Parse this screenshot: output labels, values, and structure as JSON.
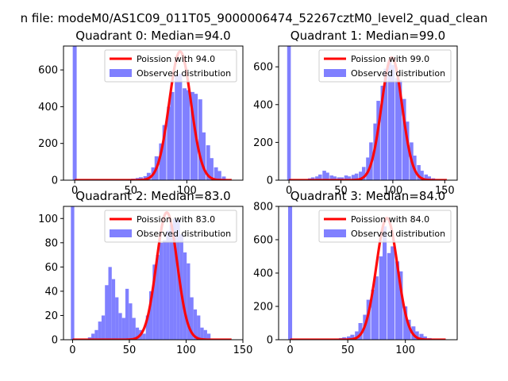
{
  "figure": {
    "suptitle": "n file: modeM0/AS1C09_011T05_9000006474_52267cztM0_level2_quad_clean"
  },
  "colors": {
    "observed": "#8080ff",
    "poisson": "#ff0000",
    "axis": "#000000",
    "background": "#ffffff"
  },
  "chart_data": [
    {
      "type": "bar",
      "title": "Quadrant 0: Median=94.0",
      "xlim": [
        -10,
        150
      ],
      "ylim": [
        0,
        730
      ],
      "xticks": [
        0,
        50,
        100
      ],
      "yticks": [
        0,
        200,
        400,
        600
      ],
      "legend": {
        "position": "upper-right",
        "entries": [
          "Poission with 94.0",
          "Observed distribution"
        ]
      },
      "poisson_mean": 94.0,
      "poisson_peak": 700,
      "hist": {
        "bin_width": 3.5,
        "x_centers": [
          0,
          49,
          52,
          56,
          59,
          63,
          66,
          70,
          73,
          77,
          80,
          84,
          87,
          91,
          94,
          98,
          101,
          105,
          108,
          112,
          115,
          119,
          122,
          126,
          129,
          133
        ],
        "values": [
          730,
          5,
          8,
          12,
          16,
          22,
          40,
          70,
          130,
          200,
          300,
          400,
          480,
          570,
          580,
          500,
          490,
          480,
          470,
          440,
          260,
          190,
          120,
          70,
          50,
          20
        ]
      }
    },
    {
      "type": "bar",
      "title": "Quadrant 1: Median=99.0",
      "xlim": [
        -10,
        162
      ],
      "ylim": [
        0,
        710
      ],
      "xticks": [
        0,
        50,
        100,
        150
      ],
      "yticks": [
        0,
        200,
        400,
        600
      ],
      "legend": {
        "position": "upper-right",
        "entries": [
          "Poission with 99.0",
          "Observed distribution"
        ]
      },
      "poisson_mean": 99.0,
      "poisson_peak": 650,
      "hist": {
        "bin_width": 3.5,
        "x_centers": [
          0,
          20,
          23,
          27,
          30,
          34,
          37,
          41,
          44,
          48,
          51,
          55,
          58,
          62,
          65,
          69,
          72,
          76,
          79,
          83,
          86,
          90,
          93,
          97,
          100,
          104,
          107,
          111,
          114,
          118,
          121,
          125,
          128,
          132,
          135,
          139
        ],
        "values": [
          710,
          10,
          15,
          20,
          30,
          50,
          40,
          25,
          20,
          15,
          15,
          25,
          20,
          28,
          35,
          45,
          70,
          120,
          200,
          300,
          420,
          500,
          590,
          640,
          610,
          540,
          530,
          430,
          310,
          200,
          130,
          80,
          50,
          30,
          20,
          10
        ]
      }
    },
    {
      "type": "bar",
      "title": "Quadrant 2: Median=83.0",
      "xlim": [
        -8,
        150
      ],
      "ylim": [
        0,
        110
      ],
      "xticks": [
        0,
        50,
        100,
        150
      ],
      "yticks": [
        0,
        20,
        40,
        60,
        80,
        100
      ],
      "legend": {
        "position": "upper-right",
        "entries": [
          "Poission with 83.0",
          "Observed distribution"
        ]
      },
      "poisson_mean": 83.0,
      "poisson_peak": 105,
      "hist": {
        "bin_width": 3,
        "x_centers": [
          0,
          15,
          18,
          21,
          24,
          27,
          30,
          33,
          36,
          39,
          42,
          45,
          48,
          51,
          54,
          57,
          60,
          63,
          66,
          69,
          72,
          75,
          78,
          81,
          84,
          87,
          90,
          93,
          96,
          99,
          102,
          105,
          108,
          111,
          114,
          117,
          120
        ],
        "values": [
          110,
          2,
          5,
          8,
          15,
          20,
          45,
          60,
          50,
          35,
          22,
          18,
          42,
          30,
          18,
          10,
          8,
          5,
          20,
          40,
          62,
          70,
          80,
          82,
          90,
          95,
          100,
          99,
          87,
          72,
          63,
          35,
          25,
          20,
          10,
          8,
          5
        ]
      }
    },
    {
      "type": "bar",
      "title": "Quadrant 3: Median=84.0",
      "xlim": [
        -10,
        145
      ],
      "ylim": [
        0,
        800
      ],
      "xticks": [
        0,
        50,
        100
      ],
      "yticks": [
        0,
        200,
        400,
        600,
        800
      ],
      "legend": {
        "position": "upper-right",
        "entries": [
          "Poission with 84.0",
          "Observed distribution"
        ]
      },
      "poisson_mean": 84.0,
      "poisson_peak": 730,
      "hist": {
        "bin_width": 3.5,
        "x_centers": [
          0,
          40,
          44,
          47,
          51,
          54,
          58,
          61,
          65,
          68,
          72,
          75,
          79,
          82,
          86,
          89,
          93,
          96,
          100,
          103,
          107,
          110,
          114,
          117,
          121,
          124
        ],
        "values": [
          800,
          5,
          10,
          15,
          20,
          30,
          50,
          100,
          150,
          240,
          300,
          380,
          500,
          680,
          520,
          560,
          470,
          410,
          200,
          120,
          80,
          50,
          35,
          20,
          10,
          5
        ]
      }
    }
  ]
}
